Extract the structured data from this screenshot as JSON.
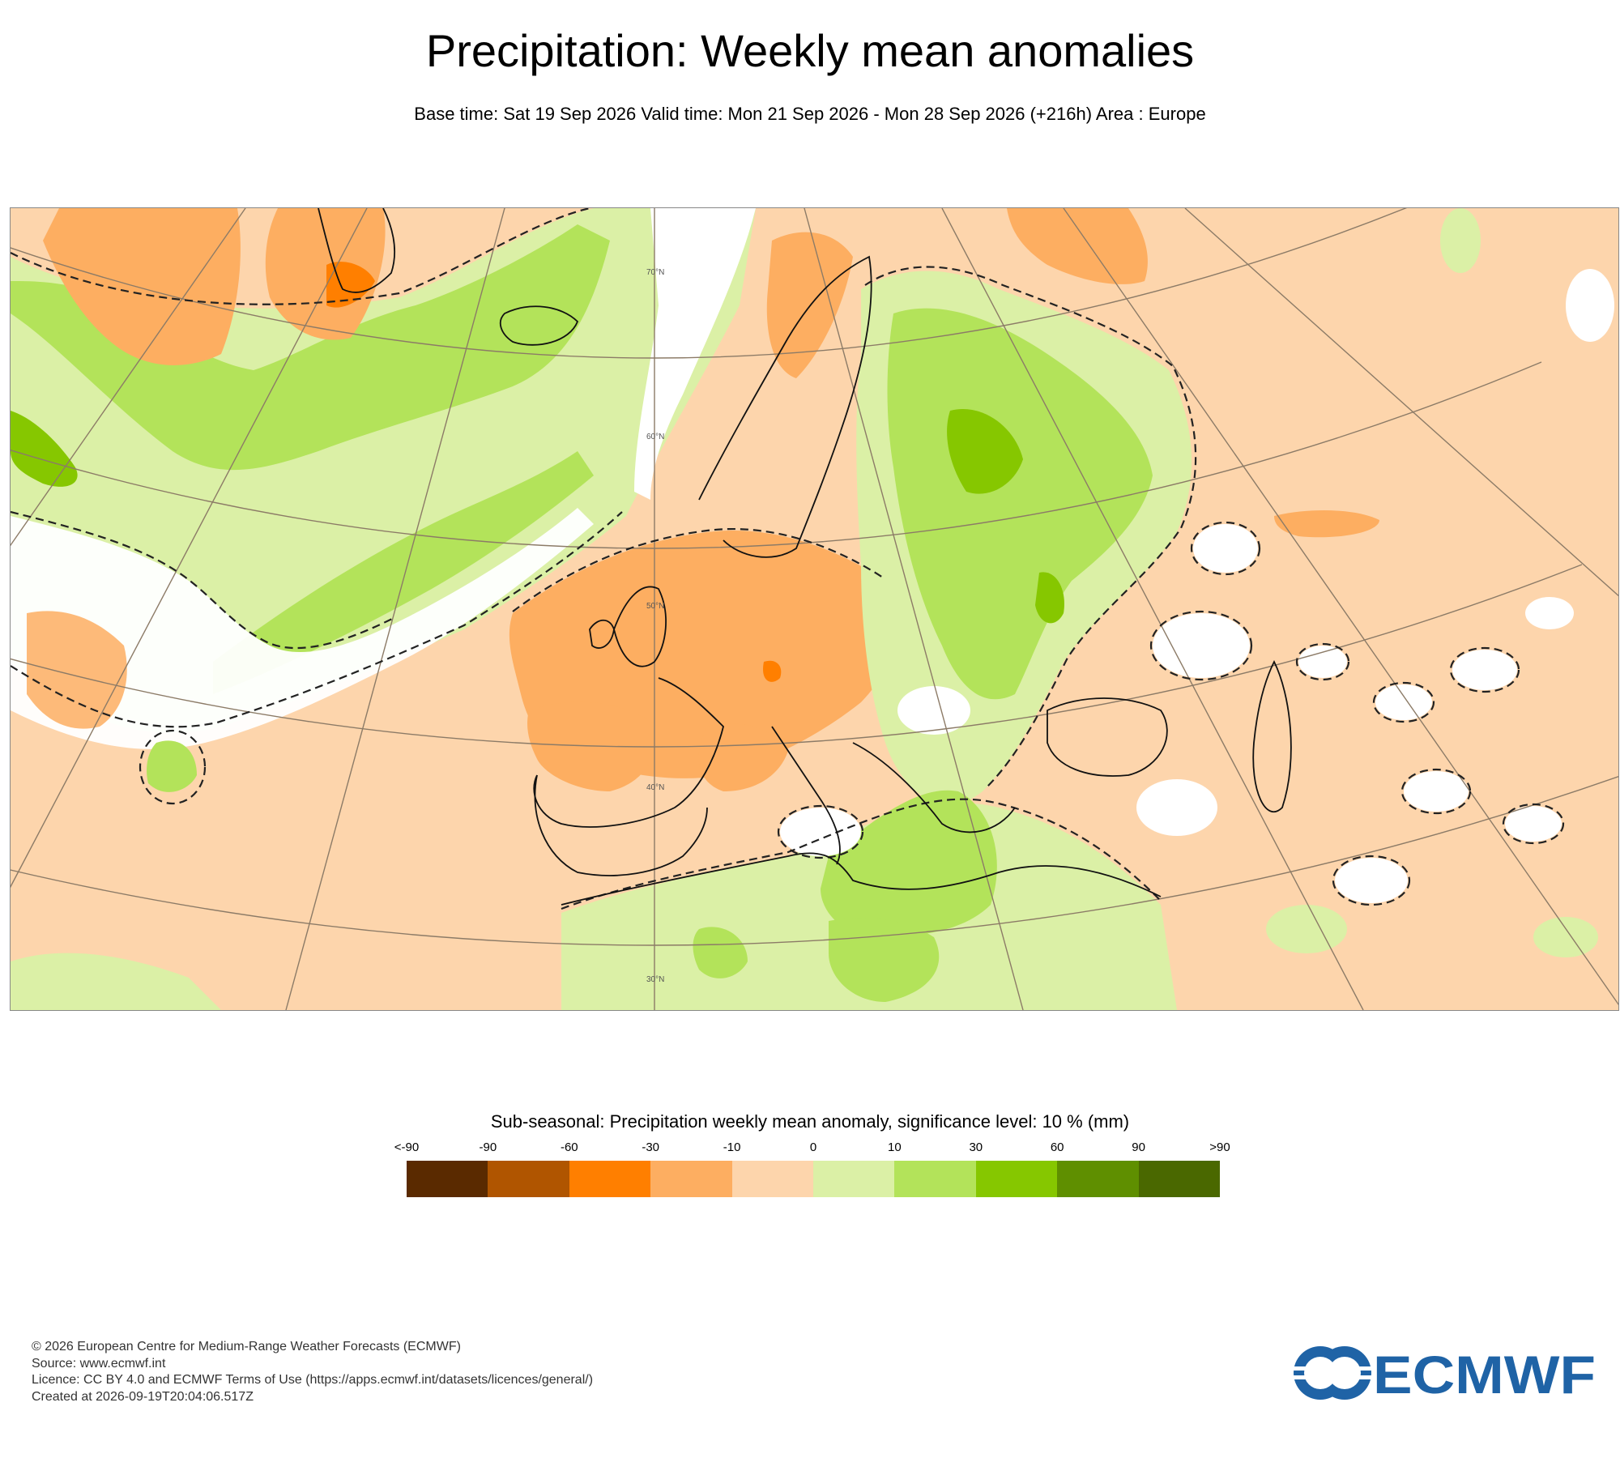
{
  "header": {
    "title": "Precipitation: Weekly mean anomalies",
    "subtitle": "Base time: Sat 19 Sep 2026 Valid time: Mon 21 Sep 2026 - Mon 28 Sep 2026 (+216h) Area : Europe"
  },
  "map": {
    "area": "Europe",
    "latitude_labels": [
      "70°N",
      "60°N",
      "50°N",
      "40°N",
      "30°N"
    ]
  },
  "legend": {
    "title": "Sub-seasonal: Precipitation weekly mean anomaly, significance level: 10 % (mm)",
    "tick_labels": [
      "<-90",
      "-90",
      "-60",
      "-30",
      "-10",
      "0",
      "10",
      "30",
      "60",
      "90",
      ">90"
    ],
    "colors": [
      "#5a2a00",
      "#b05500",
      "#ff7f00",
      "#fdae61",
      "#fdd5ac",
      "#dbf0a6",
      "#b3e35a",
      "#86c700",
      "#5f8f00",
      "#4a6800"
    ]
  },
  "footer": {
    "lines": [
      "© 2026 European Centre for Medium-Range Weather Forecasts (ECMWF)",
      "Source: www.ecmwf.int",
      "Licence: CC BY 4.0 and ECMWF Terms of Use (https://apps.ecmwf.int/datasets/licences/general/)",
      "Created at 2026-09-19T20:04:06.517Z"
    ],
    "logo_text": "ECMWF",
    "logo_color": "#1f63a6"
  }
}
